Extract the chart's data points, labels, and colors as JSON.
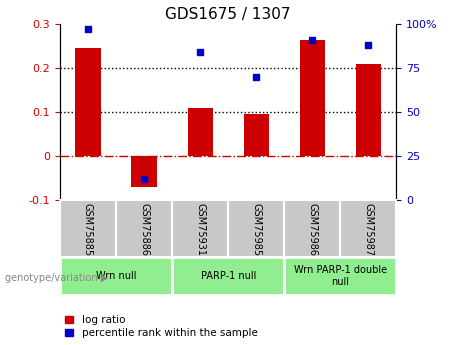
{
  "title": "GDS1675 / 1307",
  "samples": [
    "GSM75885",
    "GSM75886",
    "GSM75931",
    "GSM75985",
    "GSM75986",
    "GSM75987"
  ],
  "log_ratio": [
    0.245,
    -0.07,
    0.11,
    0.095,
    0.265,
    0.21
  ],
  "percentile_rank": [
    97,
    12,
    84,
    70,
    91,
    88
  ],
  "bar_color": "#cc0000",
  "dot_color": "#0000cc",
  "left_ylim": [
    -0.1,
    0.3
  ],
  "left_yticks": [
    -0.1,
    0.0,
    0.1,
    0.2,
    0.3
  ],
  "left_yticklabels": [
    "-0.1",
    "0",
    "0.1",
    "0.2",
    "0.3"
  ],
  "right_ylim": [
    0,
    100
  ],
  "right_yticks": [
    0,
    25,
    50,
    75,
    100
  ],
  "right_yticklabels": [
    "0",
    "25",
    "50",
    "75",
    "100%"
  ],
  "hlines_dotted": [
    0.1,
    0.2
  ],
  "hline_zero_color": "#cc0000",
  "groups": [
    {
      "label": "Wrn null",
      "start": 0,
      "end": 2
    },
    {
      "label": "PARP-1 null",
      "start": 2,
      "end": 4
    },
    {
      "label": "Wrn PARP-1 double\nnull",
      "start": 4,
      "end": 6
    }
  ],
  "group_bg_color": "#90ee90",
  "sample_bg_color": "#c8c8c8",
  "legend_items": [
    {
      "label": "log ratio",
      "color": "#cc0000"
    },
    {
      "label": "percentile rank within the sample",
      "color": "#0000cc"
    }
  ],
  "genotype_label": "genotype/variation"
}
